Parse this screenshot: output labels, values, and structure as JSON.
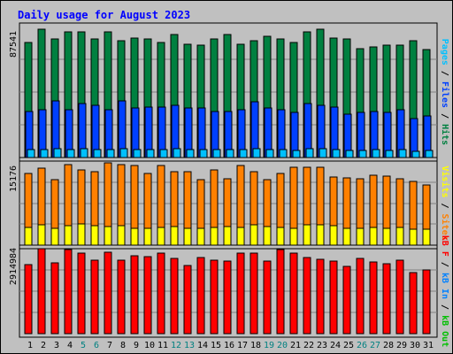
{
  "chart_data": {
    "type": "bar",
    "title": "Daily usage for August 2023",
    "categories": [
      "1",
      "2",
      "3",
      "4",
      "5",
      "6",
      "7",
      "8",
      "9",
      "10",
      "11",
      "12",
      "13",
      "14",
      "15",
      "16",
      "17",
      "18",
      "19",
      "20",
      "21",
      "22",
      "23",
      "24",
      "25",
      "26",
      "27",
      "28",
      "29",
      "30",
      "31"
    ],
    "weekend_days": [
      "5",
      "6",
      "12",
      "13",
      "19",
      "20",
      "26",
      "27"
    ],
    "panels": [
      {
        "name": "hits-files-pages",
        "ymax_label": "87541",
        "ymax": 87541,
        "right_label_parts": [
          {
            "text": "Pages",
            "color": "#00c0ff"
          },
          {
            "text": " / ",
            "color": "#000000"
          },
          {
            "text": "Files",
            "color": "#0040ff"
          },
          {
            "text": " / ",
            "color": "#000000"
          },
          {
            "text": "Hits",
            "color": "#008040"
          }
        ],
        "series": [
          {
            "name": "Hits",
            "color": "#008040",
            "values": [
              77000,
              86000,
              79000,
              84000,
              84000,
              79000,
              84000,
              78000,
              80000,
              79000,
              77000,
              82000,
              76000,
              75000,
              79000,
              82000,
              76000,
              78000,
              81000,
              79000,
              77000,
              84000,
              86000,
              80000,
              79000,
              73000,
              74000,
              75000,
              75000,
              78000,
              72000
            ]
          },
          {
            "name": "Files",
            "color": "#0040ff",
            "values": [
              31000,
              32000,
              38000,
              32000,
              36000,
              35000,
              32000,
              38000,
              33000,
              34000,
              34000,
              35000,
              33000,
              33000,
              31000,
              31000,
              32000,
              37000,
              33000,
              32000,
              30000,
              36000,
              35000,
              34000,
              29000,
              30000,
              31000,
              30000,
              32000,
              26000,
              28000
            ]
          },
          {
            "name": "Pages",
            "color": "#00c0ff",
            "values": [
              5200,
              5400,
              6200,
              5500,
              5800,
              5600,
              5400,
              6000,
              5500,
              5600,
              5500,
              5900,
              5300,
              5300,
              5100,
              5100,
              5400,
              6100,
              5500,
              5400,
              5000,
              6000,
              5900,
              5600,
              4800,
              5000,
              5200,
              5000,
              5300,
              4300,
              4700
            ]
          }
        ]
      },
      {
        "name": "visits-sites",
        "ymax_label": "15176",
        "ymax": 15176,
        "right_label_parts": [
          {
            "text": "Visits",
            "color": "#ffff00"
          },
          {
            "text": " / ",
            "color": "#000000"
          },
          {
            "text": "Sites",
            "color": "#ff8000"
          }
        ],
        "series": [
          {
            "name": "Sites",
            "color": "#ff8000",
            "values": [
              13000,
              13900,
              11800,
              14600,
              13600,
              13300,
              14800,
              14500,
              14400,
              12900,
              14300,
              13200,
              13300,
              11900,
              13600,
              12000,
              14300,
              13300,
              11900,
              12900,
              14000,
              14100,
              14000,
              12300,
              12200,
              12000,
              12600,
              12400,
              12000,
              11500,
              10900
            ]
          },
          {
            "name": "Visits",
            "color": "#ffff00",
            "values": [
              3200,
              3600,
              3100,
              3500,
              3900,
              3500,
              3400,
              3500,
              3100,
              3100,
              3200,
              3300,
              3100,
              3100,
              3200,
              3300,
              3200,
              3600,
              3300,
              3200,
              3000,
              3600,
              3700,
              3500,
              3000,
              3100,
              3200,
              3000,
              3200,
              2900,
              2800
            ]
          }
        ]
      },
      {
        "name": "kbytes",
        "ymax_label": "2914984",
        "ymax": 2914984,
        "right_label_parts": [
          {
            "text": "kB F",
            "color": "#ff0000"
          },
          {
            "text": " / ",
            "color": "#000000"
          },
          {
            "text": "kB In",
            "color": "#0080ff"
          },
          {
            "text": " / ",
            "color": "#000000"
          },
          {
            "text": "kB Out",
            "color": "#00c000"
          }
        ],
        "series": [
          {
            "name": "kB F",
            "color": "#ff0000",
            "values": [
              2360000,
              2900000,
              2420000,
              2870000,
              2750000,
              2520000,
              2780000,
              2520000,
              2680000,
              2630000,
              2750000,
              2580000,
              2330000,
              2600000,
              2520000,
              2500000,
              2750000,
              2750000,
              2500000,
              2870000,
              2770000,
              2600000,
              2540000,
              2500000,
              2300000,
              2580000,
              2470000,
              2390000,
              2520000,
              2100000,
              2190000
            ]
          }
        ]
      }
    ]
  }
}
